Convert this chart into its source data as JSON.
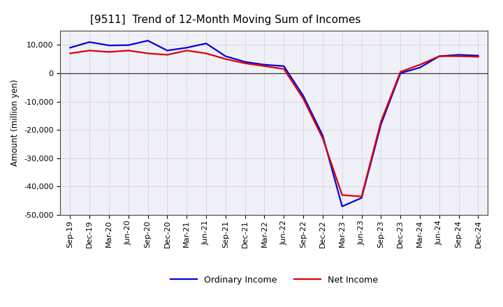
{
  "title": "[9511]  Trend of 12-Month Moving Sum of Incomes",
  "ylabel": "Amount (million yen)",
  "background_color": "#ffffff",
  "plot_bg_color": "#f0f0f8",
  "grid_color": "#aaaaaa",
  "xlabels": [
    "Sep-19",
    "Dec-19",
    "Mar-20",
    "Jun-20",
    "Sep-20",
    "Dec-20",
    "Mar-21",
    "Jun-21",
    "Sep-21",
    "Dec-21",
    "Mar-22",
    "Jun-22",
    "Sep-22",
    "Dec-22",
    "Mar-23",
    "Jun-23",
    "Sep-23",
    "Dec-23",
    "Mar-24",
    "Jun-24",
    "Sep-24",
    "Dec-24"
  ],
  "ordinary_income": [
    9000,
    11000,
    9800,
    9900,
    11500,
    8000,
    9000,
    10500,
    6000,
    4000,
    3000,
    2500,
    -8000,
    -22000,
    -47000,
    -44000,
    -18000,
    0,
    2000,
    6000,
    6500,
    6200
  ],
  "net_income": [
    7000,
    8000,
    7500,
    8000,
    7000,
    6500,
    8000,
    7000,
    5000,
    3500,
    2500,
    1500,
    -9000,
    -23000,
    -43000,
    -43500,
    -17000,
    500,
    3000,
    6000,
    6000,
    5800
  ],
  "ordinary_color": "#0000dd",
  "net_color": "#dd0000",
  "ylim": [
    -50000,
    15000
  ],
  "yticks": [
    -50000,
    -40000,
    -30000,
    -20000,
    -10000,
    0,
    10000
  ],
  "line_width": 1.6,
  "title_fontsize": 11,
  "axis_label_fontsize": 8.5,
  "tick_fontsize": 8,
  "legend_fontsize": 9
}
